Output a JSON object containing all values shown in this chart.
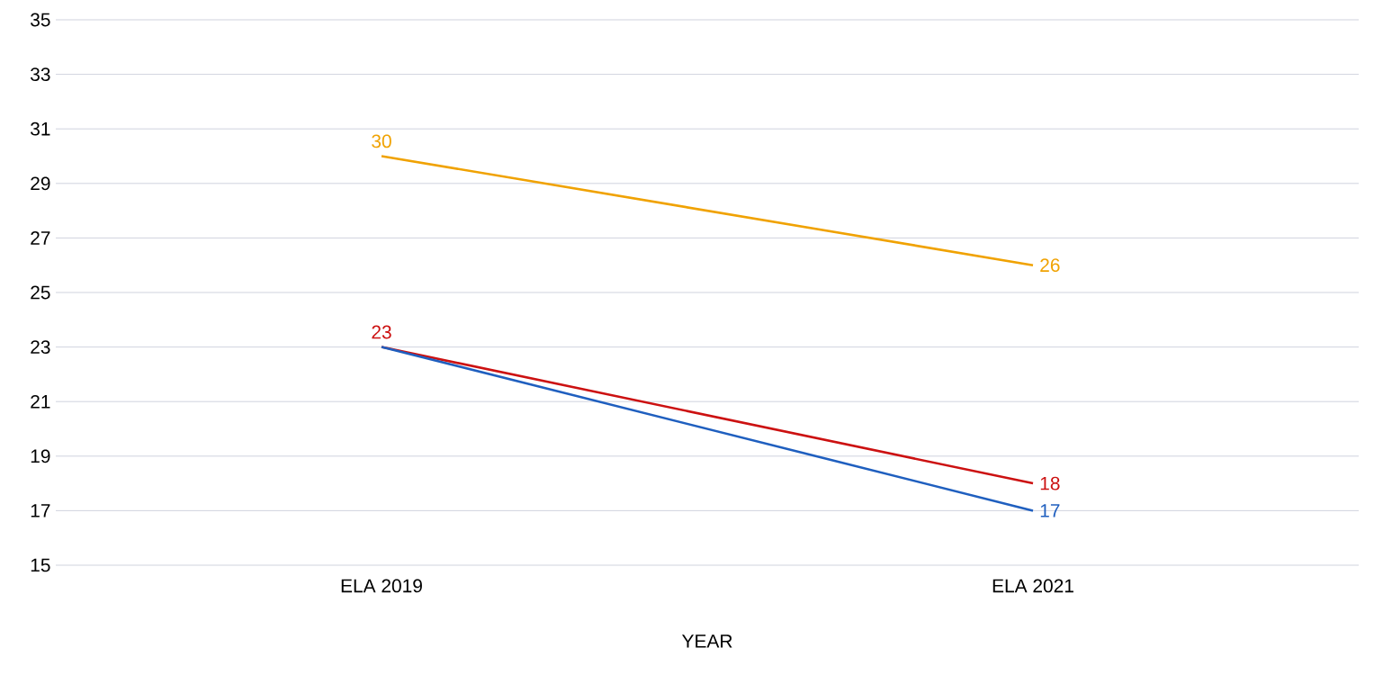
{
  "chart_data": {
    "type": "line",
    "xlabel": "YEAR",
    "categories": [
      "ELA 2019",
      "ELA 2021"
    ],
    "series": [
      {
        "color": "#f0a202",
        "values": [
          30,
          26
        ],
        "value_labels": [
          "30",
          "26"
        ]
      },
      {
        "color": "#cc1111",
        "values": [
          23,
          18
        ],
        "value_labels": [
          "23",
          "18"
        ]
      },
      {
        "color": "#1f5fbf",
        "values": [
          23,
          17
        ],
        "value_labels": [
          null,
          "17"
        ]
      }
    ],
    "ylim": [
      15,
      35
    ],
    "yticks": [
      15,
      17,
      19,
      21,
      23,
      25,
      27,
      29,
      31,
      33,
      35
    ],
    "grid": "y"
  }
}
